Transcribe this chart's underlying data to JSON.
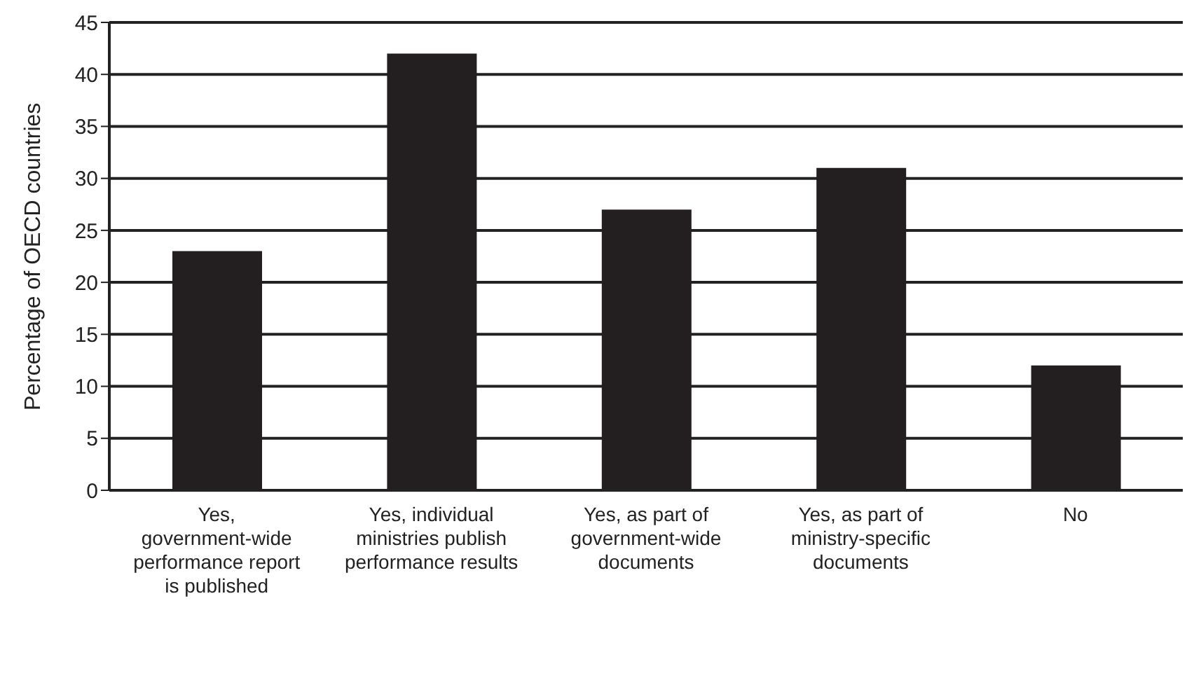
{
  "chart_data": {
    "type": "bar",
    "ylabel": "Percentage of OECD countries",
    "categories": [
      "Yes, government-wide performance report is published",
      "Yes, individual ministries publish performance results",
      "Yes, as part of government-wide documents",
      "Yes, as part of ministry-specific documents",
      "No"
    ],
    "values": [
      23,
      42,
      27,
      31,
      12
    ],
    "color": "#231f20",
    "ylim": [
      0,
      45
    ],
    "yticks": [
      0,
      5,
      10,
      15,
      20,
      25,
      30,
      35,
      40,
      45
    ],
    "grid": "y"
  }
}
